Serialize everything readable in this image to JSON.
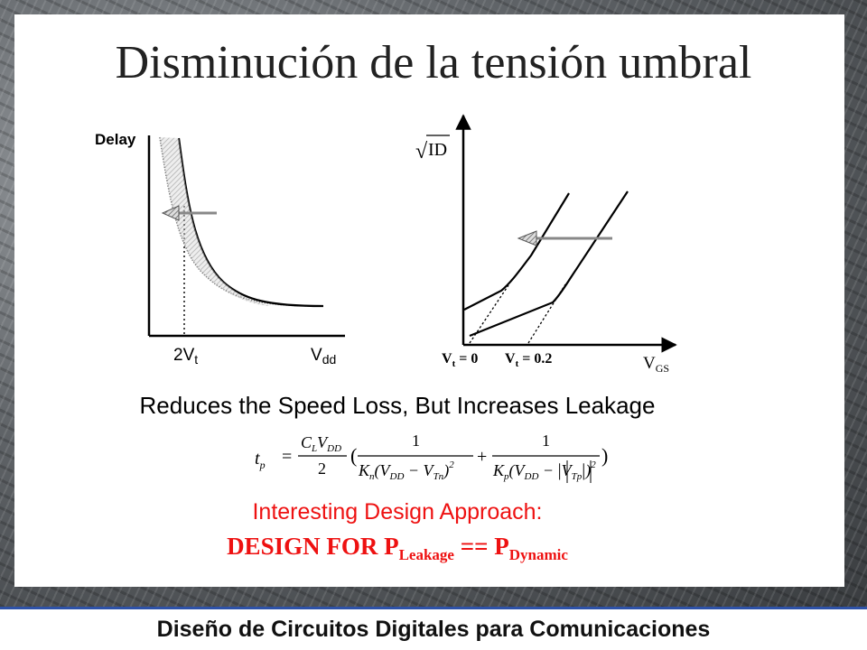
{
  "slide": {
    "title": "Disminución de la tensión umbral",
    "footer": "Diseño de Circuitos Digitales para Comunicaciones"
  },
  "left_plot": {
    "y_axis_label": "Delay",
    "x_axis_label_main": "V",
    "x_axis_label_sub": "dd",
    "marker_label_main": "2V",
    "marker_label_sub": "t"
  },
  "right_plot": {
    "y_axis_label_sqrt": "√",
    "y_axis_label_main": "I",
    "y_axis_label_sub": "D",
    "x_axis_label_main": "V",
    "x_axis_label_sub": "GS",
    "vt0_main": "V",
    "vt0_sub": "t",
    "vt0_value": " = 0",
    "vt02_main": "V",
    "vt02_sub": "t",
    "vt02_value": " = 0.2"
  },
  "caption": "Reduces the Speed Loss, But Increases Leakage",
  "approach_label": "Interesting Design Approach:",
  "design_for": {
    "prefix": "DESIGN FOR P",
    "leak_sub": "Leakage",
    "operator": " == P",
    "dyn_sub": "Dynamic"
  },
  "equation": {
    "lhs_t": "t",
    "lhs_sub": "p",
    "equals": "=",
    "num1_C": "C",
    "num1_Csub": "L",
    "num1_V": "V",
    "num1_Vsub": "DD",
    "den1": "2",
    "open_paren": "(",
    "one_a": "1",
    "den_a_K": "K",
    "den_a_Ksub": "n",
    "den_a_body": "(V",
    "den_a_Vsub": "DD",
    "den_a_minus": " − V",
    "den_a_Tsub": "Tn",
    "den_a_close": ")",
    "den_a_sq": "2",
    "plus": "+",
    "one_b": "1",
    "den_b_K": "K",
    "den_b_Ksub": "p",
    "den_b_body": "(V",
    "den_b_Vsub": "DD",
    "den_b_minus": " − ",
    "den_b_abs_V": "V",
    "den_b_abs_sub": "Tp",
    "den_b_close": ")",
    "den_b_sq": "2",
    "close_paren": ")"
  },
  "colors": {
    "accent_red": "#ee1111",
    "footer_rule": "#2e52a8"
  }
}
